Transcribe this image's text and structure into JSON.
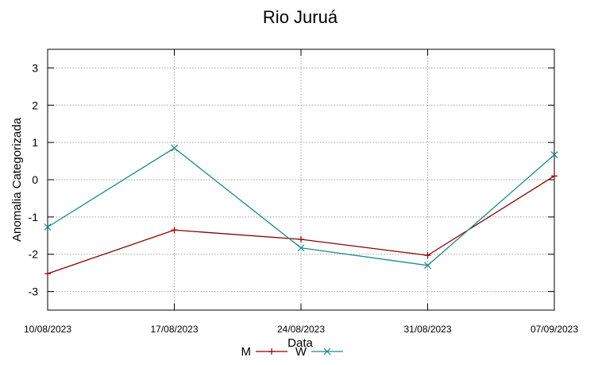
{
  "chart_data": {
    "type": "line",
    "title": "Rio Juruá",
    "xlabel": "Data",
    "ylabel": "Anomalia Categorizada",
    "x": [
      "10/08/2023",
      "17/08/2023",
      "24/08/2023",
      "31/08/2023",
      "07/09/2023"
    ],
    "yticks": [
      3,
      2,
      1,
      0,
      -1,
      -2,
      -3
    ],
    "ytick_labels": [
      "3",
      "2",
      "1",
      "0",
      "-1",
      "-2",
      "-3"
    ],
    "ylim": [
      -3.5,
      3.5
    ],
    "grid": true,
    "legend_position": "bottom-center",
    "series": [
      {
        "name": "M",
        "color": "#8b0000",
        "marker": "plus",
        "values": [
          -2.52,
          -1.35,
          -1.6,
          -2.03,
          0.1
        ]
      },
      {
        "name": "W",
        "color": "#1a8a8a",
        "marker": "cross",
        "values": [
          -1.27,
          0.85,
          -1.83,
          -2.3,
          0.67
        ]
      }
    ]
  }
}
